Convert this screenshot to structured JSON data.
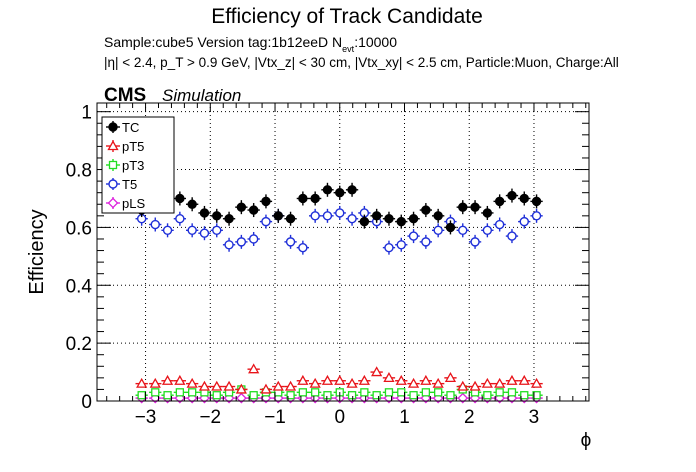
{
  "header": {
    "title": "Efficiency of Track Candidate",
    "sample_line": "Sample:cube5   Version tag:1b12eeD  N",
    "sample_sub": "evt",
    "sample_tail": ":10000",
    "cuts_line": "|η| < 2.4, p_T > 0.9 GeV, |Vtx_z| < 30 cm, |Vtx_xy| < 2.5 cm, Particle:Muon, Charge:All"
  },
  "cms": {
    "label": "CMS",
    "sublabel": "Simulation"
  },
  "colors": {
    "TC": "#000000",
    "pT5": "#e8141a",
    "pT3": "#22dd22",
    "T5": "#1f2fd8",
    "pLS": "#dd22dd",
    "frame": "#000000",
    "grid": "#000000"
  },
  "chart_data": {
    "type": "scatter",
    "title": "Efficiency of Track Candidate",
    "xlabel": "ϕ",
    "ylabel": "Efficiency",
    "xlim": [
      -3.75,
      3.85
    ],
    "ylim": [
      0,
      1.03
    ],
    "xticks": [
      -3,
      -2,
      -1,
      0,
      1,
      2,
      3
    ],
    "yticks": [
      0,
      0.2,
      0.4,
      0.6,
      0.8,
      1
    ],
    "grid": true,
    "legend_position": "top-left",
    "x": [
      -3.06,
      -2.85,
      -2.66,
      -2.47,
      -2.28,
      -2.09,
      -1.9,
      -1.71,
      -1.52,
      -1.33,
      -1.14,
      -0.95,
      -0.76,
      -0.57,
      -0.38,
      -0.19,
      0.0,
      0.19,
      0.38,
      0.57,
      0.76,
      0.95,
      1.14,
      1.33,
      1.52,
      1.71,
      1.9,
      2.09,
      2.28,
      2.47,
      2.66,
      2.85,
      3.04
    ],
    "series": [
      {
        "name": "TC",
        "marker": "circle-filled",
        "values": [
          0.66,
          0.68,
          0.7,
          0.7,
          0.68,
          0.65,
          0.64,
          0.63,
          0.67,
          0.66,
          0.69,
          0.64,
          0.63,
          0.7,
          0.7,
          0.73,
          0.72,
          0.73,
          0.62,
          0.64,
          0.63,
          0.62,
          0.63,
          0.66,
          0.64,
          0.6,
          0.67,
          0.67,
          0.65,
          0.69,
          0.71,
          0.7,
          0.69
        ]
      },
      {
        "name": "pT5",
        "marker": "triangle-up-open",
        "values": [
          0.06,
          0.06,
          0.07,
          0.07,
          0.06,
          0.05,
          0.05,
          0.05,
          0.04,
          0.11,
          0.04,
          0.05,
          0.05,
          0.07,
          0.06,
          0.07,
          0.07,
          0.06,
          0.07,
          0.1,
          0.08,
          0.07,
          0.06,
          0.07,
          0.06,
          0.08,
          0.05,
          0.05,
          0.06,
          0.06,
          0.07,
          0.07,
          0.06
        ]
      },
      {
        "name": "pT3",
        "marker": "square-open",
        "values": [
          0.02,
          0.03,
          0.02,
          0.03,
          0.03,
          0.03,
          0.02,
          0.03,
          0.04,
          0.02,
          0.03,
          0.03,
          0.02,
          0.03,
          0.03,
          0.02,
          0.03,
          0.02,
          0.03,
          0.02,
          0.03,
          0.03,
          0.02,
          0.03,
          0.03,
          0.02,
          0.04,
          0.03,
          0.02,
          0.03,
          0.03,
          0.02,
          0.02
        ]
      },
      {
        "name": "T5",
        "marker": "circle-open",
        "values": [
          0.63,
          0.61,
          0.59,
          0.63,
          0.59,
          0.58,
          0.59,
          0.54,
          0.55,
          0.56,
          0.62,
          0.64,
          0.55,
          0.53,
          0.64,
          0.64,
          0.65,
          0.63,
          0.65,
          0.62,
          0.53,
          0.54,
          0.57,
          0.55,
          0.59,
          0.62,
          0.59,
          0.55,
          0.59,
          0.61,
          0.57,
          0.62,
          0.64
        ]
      },
      {
        "name": "pLS",
        "marker": "diamond-open",
        "values": [
          0.01,
          0.01,
          0.01,
          0.01,
          0.01,
          0.01,
          0.01,
          0.01,
          0.01,
          0.01,
          0.01,
          0.01,
          0.01,
          0.01,
          0.01,
          0.01,
          0.01,
          0.01,
          0.01,
          0.01,
          0.01,
          0.01,
          0.01,
          0.01,
          0.01,
          0.01,
          0.01,
          0.01,
          0.01,
          0.01,
          0.01,
          0.01,
          0.01
        ]
      }
    ]
  }
}
